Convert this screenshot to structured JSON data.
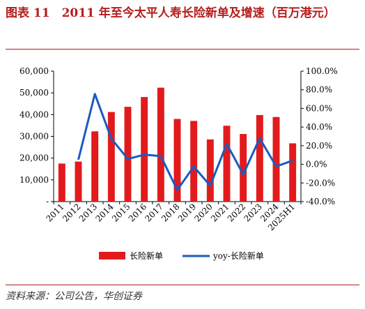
{
  "title": "图表 11　2011 年至今太平人寿长险新单及增速（百万港元）",
  "source": "资料来源：公司公告，华创证券",
  "colors": {
    "bar": "#e31a1c",
    "line": "#1a5bbf",
    "title": "#b71c1c"
  },
  "chart_data": {
    "type": "bar",
    "categories": [
      "2011",
      "2012",
      "2013",
      "2014",
      "2015",
      "2016",
      "2017",
      "2018",
      "2019",
      "2020",
      "2021",
      "2022",
      "2023",
      "2024",
      "2025H1"
    ],
    "series": [
      {
        "name": "长险新单",
        "type": "bar",
        "axis": "left",
        "values": [
          17500,
          18400,
          32300,
          41200,
          43600,
          48100,
          52400,
          38000,
          37100,
          28600,
          34900,
          31100,
          39800,
          38900,
          26800
        ]
      },
      {
        "name": "yoy-长险新单",
        "type": "line",
        "axis": "right",
        "values": [
          null,
          5.0,
          75.5,
          27.6,
          5.8,
          10.3,
          8.9,
          -27.5,
          -2.4,
          -22.9,
          22.0,
          -10.9,
          28.0,
          -2.3,
          4.0
        ]
      }
    ],
    "yleft": {
      "ticks": [
        "-",
        "10,000",
        "20,000",
        "30,000",
        "40,000",
        "50,000",
        "60,000"
      ],
      "ylim": [
        0,
        60000
      ]
    },
    "yright": {
      "ticks": [
        "-40.0%",
        "-20.0%",
        "0.0%",
        "20.0%",
        "40.0%",
        "60.0%",
        "80.0%",
        "100.0%"
      ],
      "ylim": [
        -40,
        100
      ]
    },
    "legend": {
      "position": "bottom",
      "items": [
        "长险新单",
        "yoy-长险新单"
      ]
    },
    "grid": false
  }
}
